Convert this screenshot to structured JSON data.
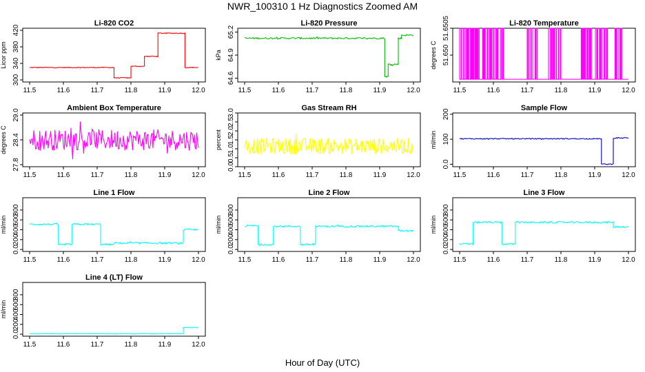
{
  "title": "NWR_100310  1 Hz Diagnostics Zoomed AM",
  "xlabel": "Hour of Day (UTC)",
  "chart_data": [
    {
      "type": "line",
      "title": "Li-820 CO2",
      "ylabel": "Licor ppm",
      "color": "#ff0000",
      "xlim": [
        11.5,
        12.0
      ],
      "xticks": [
        11.5,
        11.6,
        11.7,
        11.8,
        11.9,
        12.0
      ],
      "ylim": [
        295,
        425
      ],
      "yticks": [
        300,
        340,
        380,
        420
      ],
      "segments": [
        [
          11.5,
          11.75,
          330
        ],
        [
          11.75,
          11.8,
          305
        ],
        [
          11.8,
          11.84,
          333
        ],
        [
          11.84,
          11.88,
          357
        ],
        [
          11.88,
          11.96,
          413
        ],
        [
          11.96,
          12.0,
          330
        ]
      ],
      "noise": 1
    },
    {
      "type": "line",
      "title": "Li-820 Pressure",
      "ylabel": "kPa",
      "color": "#00bb00",
      "xlim": [
        11.5,
        12.0
      ],
      "xticks": [
        11.5,
        11.6,
        11.7,
        11.8,
        11.9,
        12.0
      ],
      "ylim": [
        64.55,
        65.25
      ],
      "yticks": [
        64.6,
        64.9,
        65.2
      ],
      "segments": [
        [
          11.5,
          11.915,
          65.12
        ],
        [
          11.915,
          11.925,
          64.62
        ],
        [
          11.925,
          11.955,
          64.78
        ],
        [
          11.955,
          11.965,
          65.12
        ],
        [
          11.965,
          12.0,
          65.16
        ]
      ],
      "noise": 0.01
    },
    {
      "type": "line",
      "title": "Li-820 Temperature",
      "ylabel": "degrees C",
      "color": "#ff00ff",
      "xlim": [
        11.5,
        12.0
      ],
      "xticks": [
        11.5,
        11.6,
        11.7,
        11.8,
        11.9,
        12.0
      ],
      "ylim": [
        51.6495,
        51.6505
      ],
      "yticks": [
        51.65,
        51.6505
      ],
      "ytick_labels": [
        "51.650",
        "51.6505"
      ],
      "spikes": [
        [
          11.5,
          11.63
        ],
        [
          11.7,
          11.73
        ],
        [
          11.76,
          11.8
        ],
        [
          11.86,
          11.89
        ],
        [
          11.9,
          11.94
        ],
        [
          11.96,
          11.98
        ]
      ],
      "noise": 0
    },
    {
      "type": "line",
      "title": "Ambient Box Temperature",
      "ylabel": "degrees C",
      "color": "#ff00ff",
      "xlim": [
        11.5,
        12.0
      ],
      "xticks": [
        11.5,
        11.6,
        11.7,
        11.8,
        11.9,
        12.0
      ],
      "ylim": [
        27.75,
        29.05
      ],
      "yticks": [
        27.8,
        28.4,
        29.0
      ],
      "segments": [
        [
          11.5,
          12.0,
          28.4
        ]
      ],
      "noise": 0.25
    },
    {
      "type": "line",
      "title": "Gas Stream RH",
      "ylabel": "percent",
      "color": "#ffff00",
      "xlim": [
        11.5,
        12.0
      ],
      "xticks": [
        11.5,
        11.6,
        11.7,
        11.8,
        11.9,
        12.0
      ],
      "ylim": [
        0,
        3.0
      ],
      "yticks": [
        0.0,
        0.5,
        1.0,
        1.5,
        2.0,
        2.5,
        3.0
      ],
      "segments": [
        [
          11.5,
          12.0,
          1.15
        ]
      ],
      "noise": 0.45
    },
    {
      "type": "line",
      "title": "Sample Flow",
      "ylabel": "ml/min",
      "color": "#0000cc",
      "xlim": [
        11.5,
        12.0
      ],
      "xticks": [
        11.5,
        11.6,
        11.7,
        11.8,
        11.9,
        12.0
      ],
      "ylim": [
        -10,
        205
      ],
      "yticks": [
        0,
        100,
        200
      ],
      "segments": [
        [
          11.5,
          11.92,
          102
        ],
        [
          11.92,
          11.955,
          0
        ],
        [
          11.955,
          12.0,
          105
        ]
      ],
      "noise": 2
    },
    {
      "type": "line",
      "title": "Line 1 Flow",
      "ylabel": "ml/min",
      "color": "#00ffff",
      "xlim": [
        11.5,
        12.0
      ],
      "xticks": [
        11.5,
        11.6,
        11.7,
        11.8,
        11.9,
        12.0
      ],
      "ylim": [
        -40,
        1050
      ],
      "yticks": [
        0,
        200,
        400,
        600,
        800
      ],
      "segments": [
        [
          11.5,
          11.585,
          510
        ],
        [
          11.585,
          11.625,
          100
        ],
        [
          11.625,
          11.71,
          510
        ],
        [
          11.71,
          11.75,
          100
        ],
        [
          11.75,
          11.955,
          130
        ],
        [
          11.955,
          12.0,
          400
        ]
      ],
      "noise": 18
    },
    {
      "type": "line",
      "title": "Line 2 Flow",
      "ylabel": "ml/min",
      "color": "#00ffff",
      "xlim": [
        11.5,
        12.0
      ],
      "xticks": [
        11.5,
        11.6,
        11.7,
        11.8,
        11.9,
        12.0
      ],
      "ylim": [
        -40,
        1050
      ],
      "yticks": [
        0,
        200,
        400,
        600,
        800
      ],
      "segments": [
        [
          11.5,
          11.54,
          480
        ],
        [
          11.54,
          11.585,
          100
        ],
        [
          11.585,
          11.665,
          470
        ],
        [
          11.665,
          11.71,
          100
        ],
        [
          11.71,
          11.955,
          470
        ],
        [
          11.955,
          12.0,
          380
        ]
      ],
      "noise": 18
    },
    {
      "type": "line",
      "title": "Line 3 Flow",
      "ylabel": "ml/min",
      "color": "#00ffff",
      "xlim": [
        11.5,
        12.0
      ],
      "xticks": [
        11.5,
        11.6,
        11.7,
        11.8,
        11.9,
        12.0
      ],
      "ylim": [
        -40,
        1050
      ],
      "yticks": [
        0,
        200,
        400,
        600,
        800
      ],
      "segments": [
        [
          11.5,
          11.54,
          110
        ],
        [
          11.54,
          11.625,
          550
        ],
        [
          11.625,
          11.665,
          110
        ],
        [
          11.665,
          11.955,
          550
        ],
        [
          11.955,
          12.0,
          460
        ]
      ],
      "noise": 18
    },
    {
      "type": "line",
      "title": "Line 4 (LT) Flow",
      "ylabel": "ml/min",
      "color": "#00ffff",
      "xlim": [
        11.5,
        12.0
      ],
      "xticks": [
        11.5,
        11.6,
        11.7,
        11.8,
        11.9,
        12.0
      ],
      "ylim": [
        -40,
        1050
      ],
      "yticks": [
        0,
        200,
        400,
        600,
        800
      ],
      "segments": [
        [
          11.5,
          11.955,
          10
        ],
        [
          11.955,
          12.0,
          135
        ]
      ],
      "noise": 4
    }
  ]
}
